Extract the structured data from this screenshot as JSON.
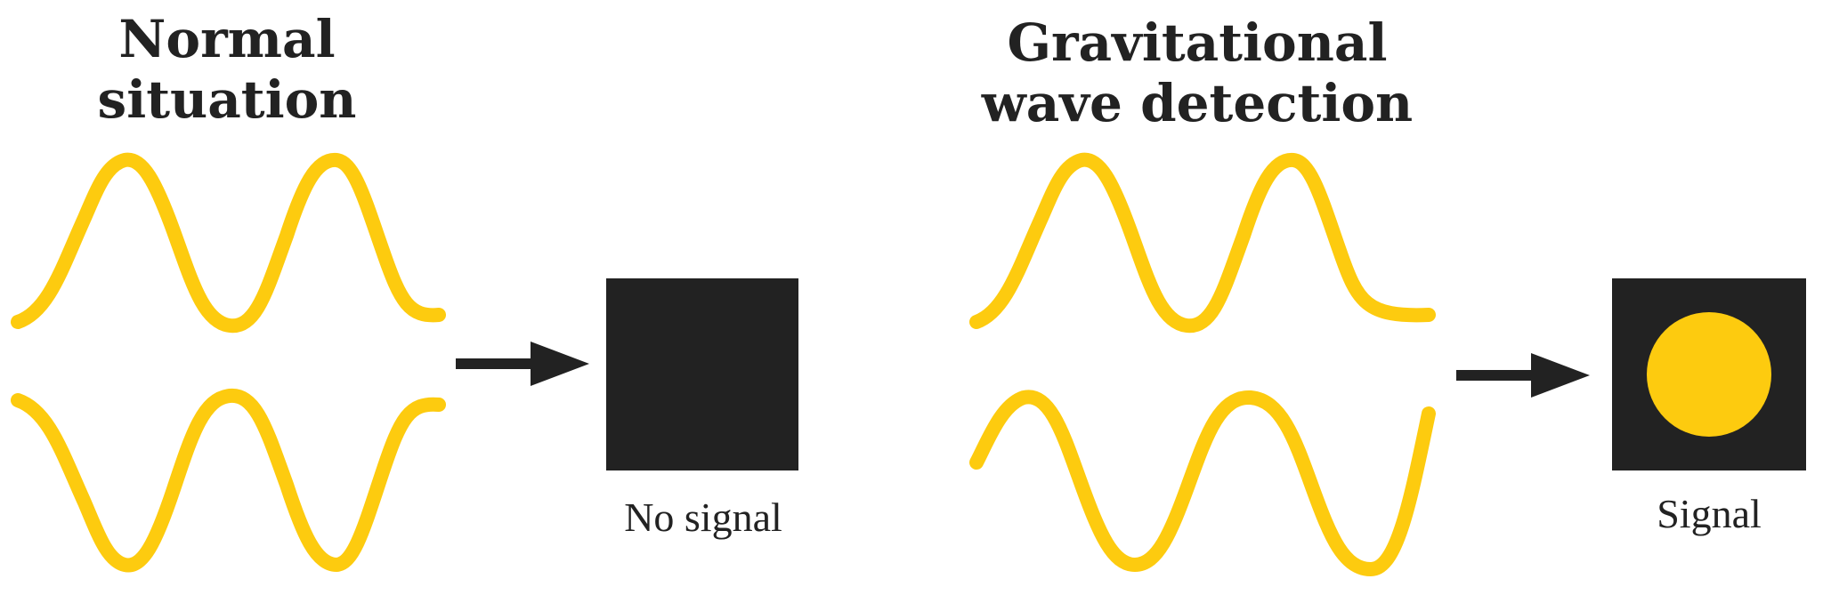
{
  "panels": {
    "left": {
      "heading": [
        "Normal",
        "situation"
      ],
      "caption": "No signal"
    },
    "right": {
      "heading": [
        "Gravitational",
        "wave detection"
      ],
      "caption": "Signal"
    }
  },
  "colors": {
    "wave": "#FDCB0F",
    "ink": "#222222",
    "detector": "#222222",
    "signal_dot": "#FDCB0F"
  }
}
